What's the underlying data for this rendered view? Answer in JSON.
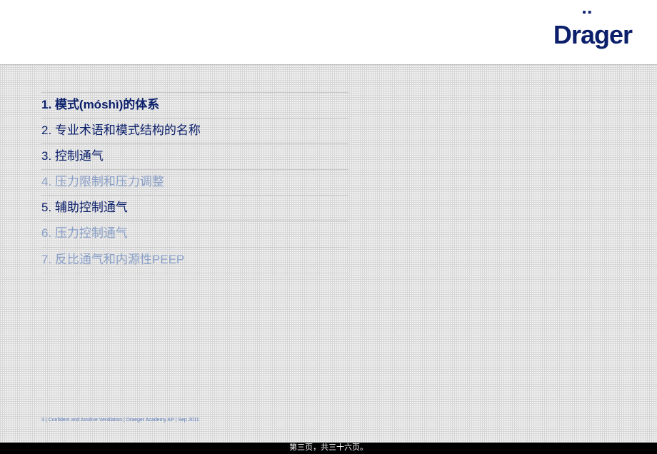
{
  "logo_text": "Dräger",
  "logo_color": "#0b1f6b",
  "items": [
    {
      "num": "1.",
      "text": "模式(móshì)的体系",
      "state": "active"
    },
    {
      "num": "2.",
      "text": "专业术语和模式结构的名称",
      "state": "normal"
    },
    {
      "num": "3.",
      "text": "控制通气",
      "state": "normal"
    },
    {
      "num": "4.",
      "text": "压力限制和压力调整",
      "state": "muted"
    },
    {
      "num": "5.",
      "text": "辅助控制通气",
      "state": "normal"
    },
    {
      "num": "6.",
      "text": "压力控制通气",
      "state": "muted"
    },
    {
      "num": "7.",
      "text": "反比通气和内源性PEEP",
      "state": "muted"
    }
  ],
  "colors": {
    "brand": "#0b1f6b",
    "muted": "#8aa0c8",
    "divider": "#c9c9c9",
    "pattern_bg": "#f1f1f1",
    "pattern_line": "#d6d6d6"
  },
  "footer_left": "3 |    Confident  and Assitive Ventilation   | Draeger  Academy  AP | Sep  2011",
  "footer_center": "第三页，共三十六页。"
}
